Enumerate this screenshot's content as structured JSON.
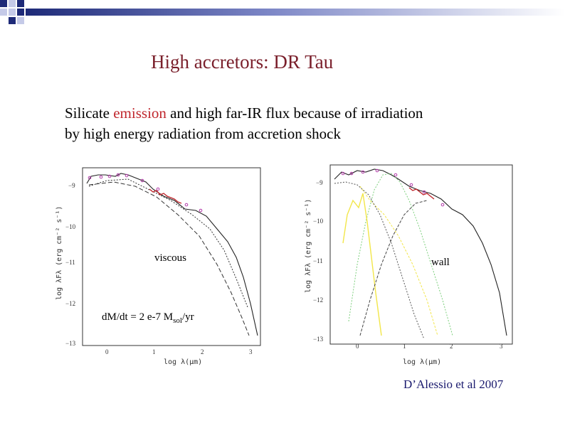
{
  "slide": {
    "title": "High accretors: DR Tau",
    "subtitle_prefix": "Silicate ",
    "subtitle_highlight": "emission",
    "subtitle_rest": " and high far-IR flux because of irradiation",
    "subtitle_line2": "by high energy radiation from accretion shock",
    "label_viscous": "viscous",
    "label_wall": "wall",
    "label_mdot_main": "d",
    "label_mdot_M": "M/dt = 2 e-7 M",
    "label_mdot_sub": "sol",
    "label_mdot_end": "/yr",
    "citation": "D’Alessio et al 2007"
  },
  "plots": {
    "ylabel": "log λFλ (erg cm⁻² s⁻¹)",
    "xlabel": "log λ(μm)",
    "xticks": [
      "0",
      "1",
      "2",
      "3"
    ],
    "yticks": [
      "−9",
      "−10",
      "−11",
      "−12",
      "−13"
    ]
  },
  "colors": {
    "title": "#7a1f2b",
    "highlight": "#c0272d",
    "citation": "#1a1a6e",
    "corner_navy": "#1e2a78",
    "corner_light": "#c5cae8"
  }
}
